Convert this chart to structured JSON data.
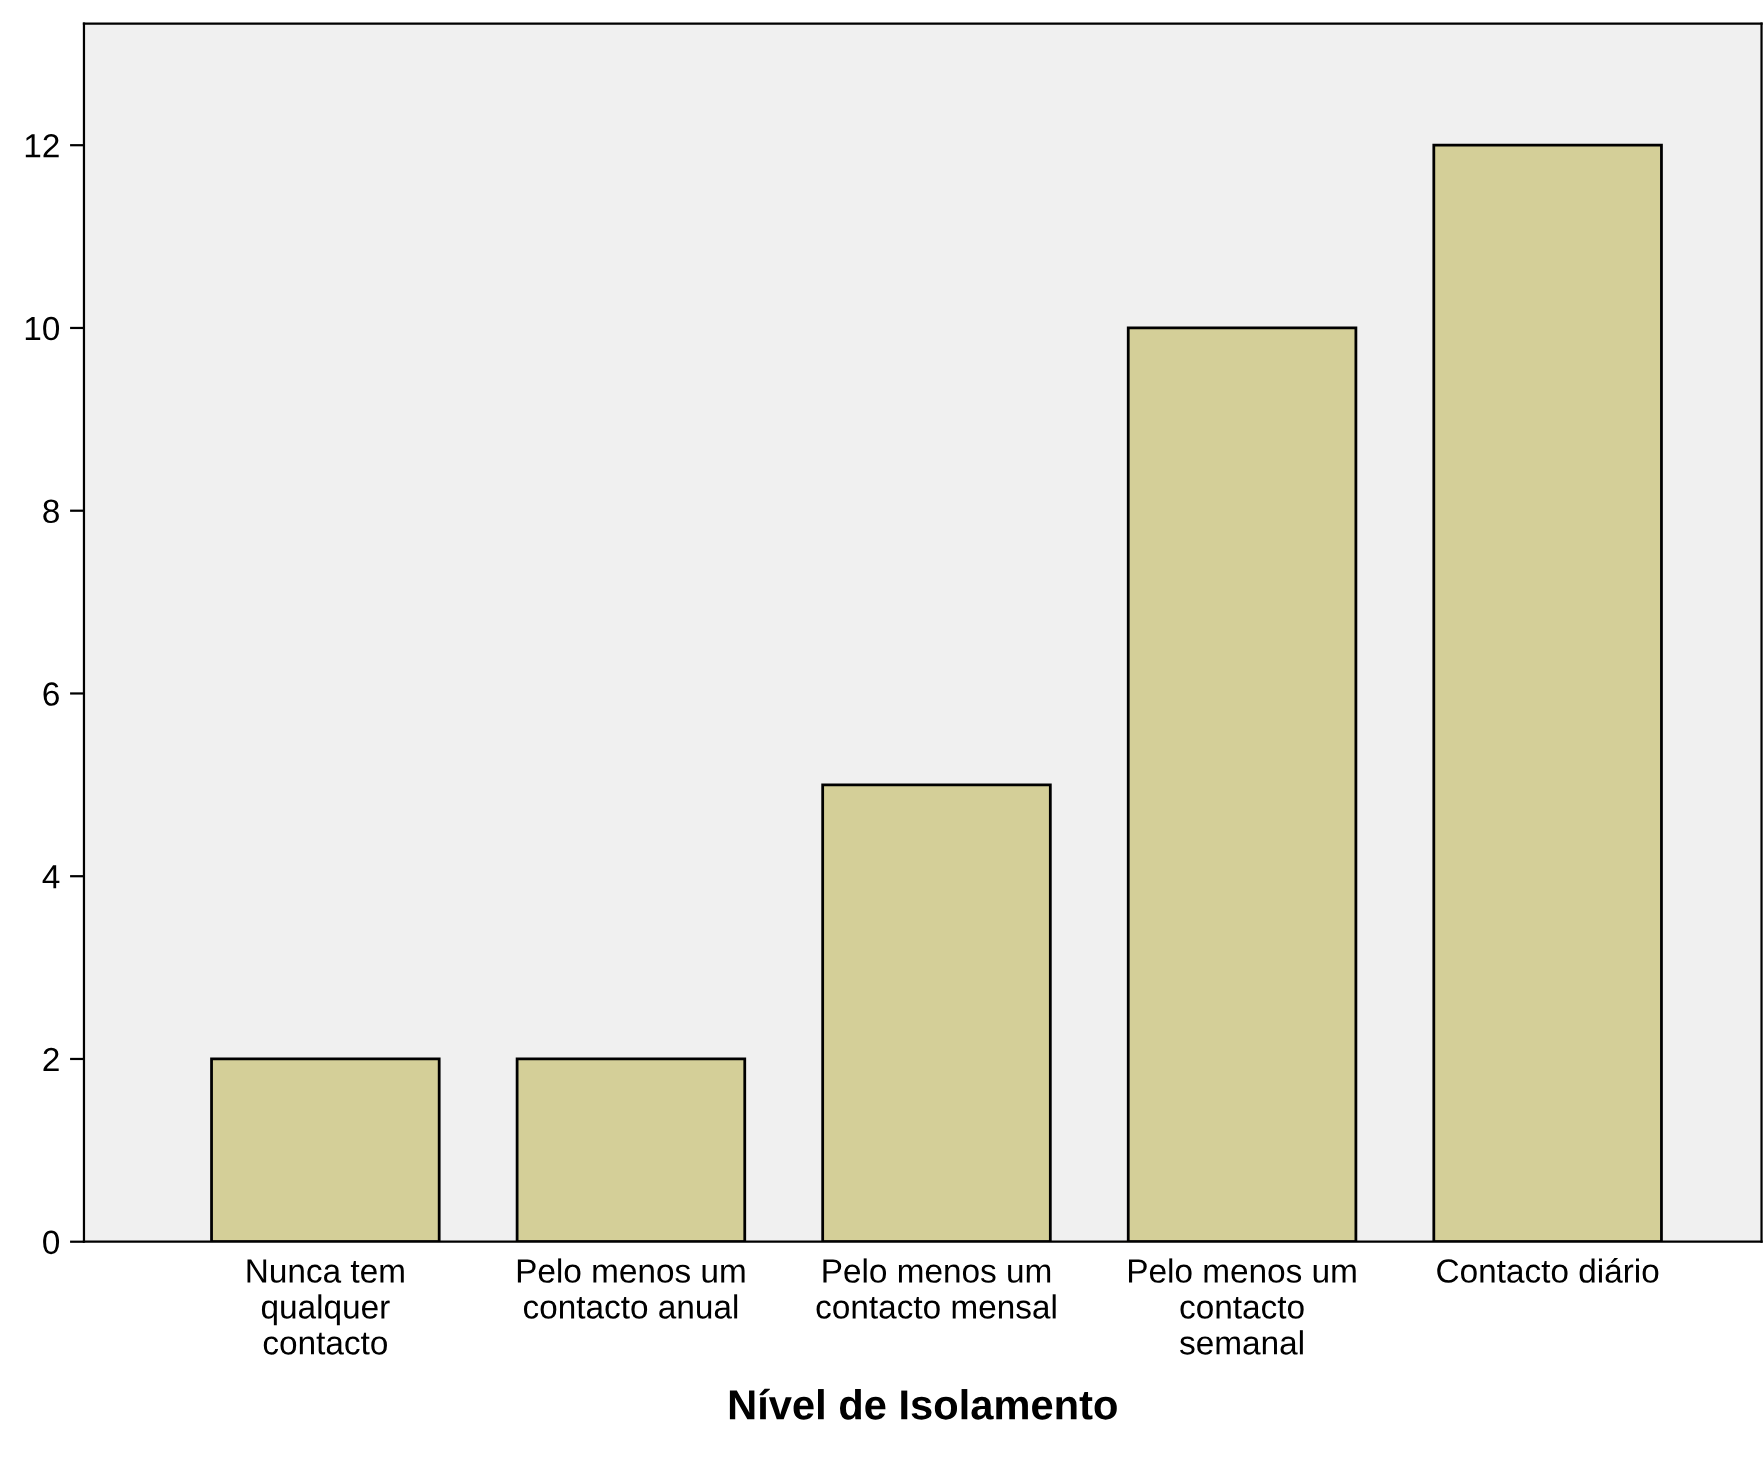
{
  "chart_data": {
    "type": "bar",
    "xlabel": "Nível de Isolamento",
    "categories": [
      "Nunca tem\nqualquer\ncontacto",
      "Pelo menos um\ncontacto anual",
      "Pelo menos um\ncontacto mensal",
      "Pelo menos um\ncontacto\nsemanal",
      "Contacto diário"
    ],
    "values": [
      2,
      2,
      5,
      10,
      12
    ],
    "color": "#d4cf98",
    "ylim": [
      0,
      13.33
    ],
    "yticks": [
      0,
      2,
      4,
      6,
      8,
      10,
      12
    ],
    "grid": false
  }
}
